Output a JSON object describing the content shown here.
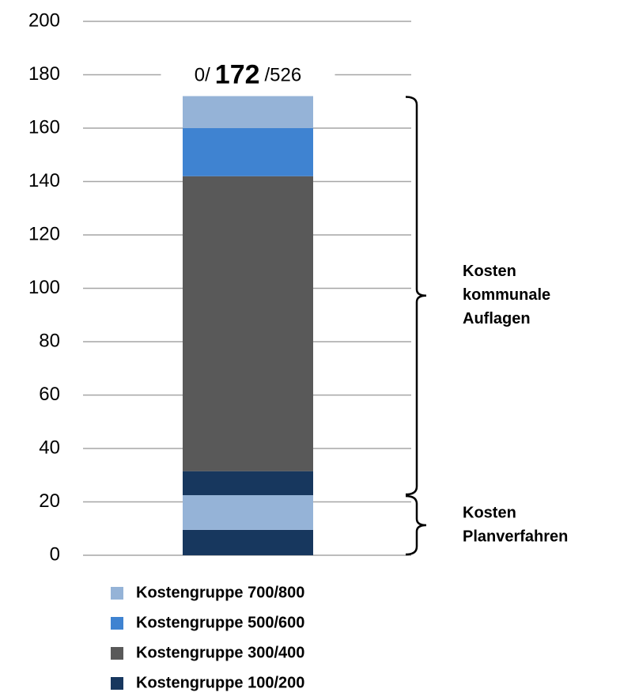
{
  "chart_data": {
    "type": "stacked_bar",
    "groups": [
      {
        "label_lines": [
          "Kosten",
          "Planverfahren"
        ]
      },
      {
        "label_lines": [
          "Kosten",
          "kommunale",
          "Auflagen"
        ]
      }
    ],
    "series": [
      {
        "name": "Kostengruppe 700/800",
        "color": "#95b3d7",
        "values": [
          13,
          12
        ]
      },
      {
        "name": "Kostengruppe 500/600",
        "color": "#3f83d1",
        "values": [
          null,
          18
        ]
      },
      {
        "name": "Kostengruppe 300/400",
        "color": "#595959",
        "values": [
          null,
          110.5
        ]
      },
      {
        "name": "Kostengruppe 100/200",
        "color": "#17375e",
        "values": [
          9.5,
          9
        ]
      }
    ],
    "total_label": [
      "0/",
      "172",
      "/526"
    ],
    "ylim": [
      0,
      200
    ],
    "yticks": [
      0,
      20,
      40,
      60,
      80,
      100,
      120,
      140,
      160,
      180,
      200
    ],
    "grid": true
  }
}
